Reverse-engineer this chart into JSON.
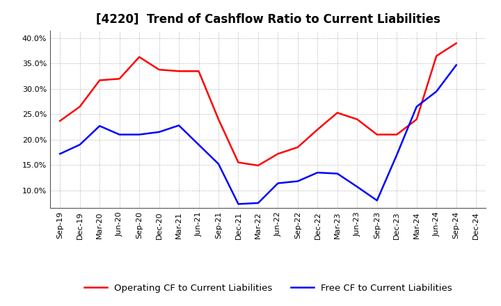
{
  "title": "[4220]  Trend of Cashflow Ratio to Current Liabilities",
  "x_labels": [
    "Sep-19",
    "Dec-19",
    "Mar-20",
    "Jun-20",
    "Sep-20",
    "Dec-20",
    "Mar-21",
    "Jun-21",
    "Sep-21",
    "Dec-21",
    "Mar-22",
    "Jun-22",
    "Sep-22",
    "Dec-22",
    "Mar-23",
    "Jun-23",
    "Sep-23",
    "Dec-23",
    "Mar-24",
    "Jun-24",
    "Sep-24",
    "Dec-24"
  ],
  "operating_cf": [
    0.237,
    0.265,
    0.317,
    0.32,
    0.363,
    0.338,
    0.335,
    0.335,
    0.24,
    0.155,
    0.149,
    0.172,
    0.185,
    0.22,
    0.253,
    0.24,
    0.21,
    0.21,
    0.24,
    0.365,
    0.39,
    null
  ],
  "free_cf": [
    0.172,
    0.19,
    0.227,
    0.21,
    0.21,
    0.215,
    0.228,
    0.19,
    0.152,
    0.073,
    0.075,
    0.114,
    0.118,
    0.135,
    0.133,
    0.107,
    0.08,
    0.17,
    0.265,
    0.295,
    0.347,
    null
  ],
  "operating_color": "#ff0000",
  "free_color": "#0000ff",
  "ylim_low": 0.065,
  "ylim_high": 0.415,
  "yticks": [
    0.1,
    0.15,
    0.2,
    0.25,
    0.3,
    0.35,
    0.4
  ],
  "background_color": "#ffffff",
  "grid_color": "#aaaaaa",
  "title_fontsize": 12,
  "legend_fontsize": 9.5,
  "tick_fontsize": 8,
  "line_width": 1.8
}
